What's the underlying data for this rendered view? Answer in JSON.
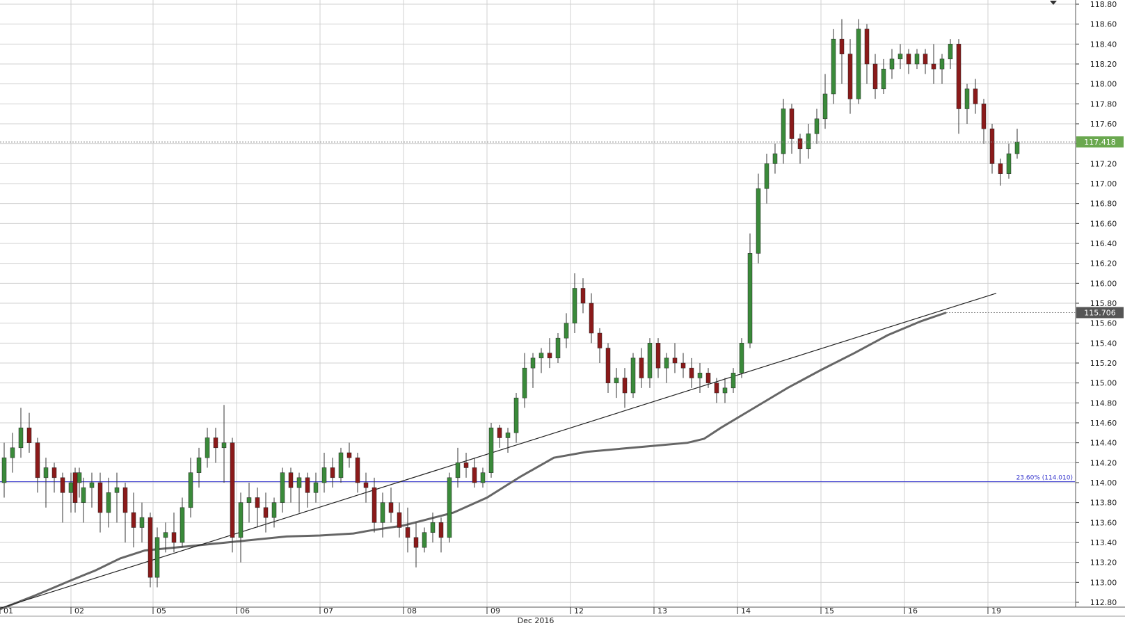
{
  "chart_data": {
    "type": "candlestick",
    "title": "",
    "xlabel": "",
    "ylabel": "",
    "month_label": "Dec 2016",
    "ylim": [
      112.72,
      118.82
    ],
    "y_ticks": [
      "112.80",
      "113.00",
      "113.20",
      "113.40",
      "113.60",
      "113.80",
      "114.00",
      "114.20",
      "114.40",
      "114.60",
      "114.80",
      "115.00",
      "115.20",
      "115.40",
      "115.60",
      "115.80",
      "116.00",
      "116.20",
      "116.40",
      "116.60",
      "116.80",
      "117.00",
      "117.20",
      "117.40",
      "117.60",
      "117.80",
      "118.00",
      "118.20",
      "118.40",
      "118.60",
      "118.80"
    ],
    "x_day_labels": [
      "01",
      "02",
      "05",
      "06",
      "07",
      "08",
      "09",
      "12",
      "13",
      "14",
      "15",
      "16",
      "19"
    ],
    "grid": true,
    "current_price_label": "117.418",
    "current_price": 117.418,
    "ma_price_label": "115.706",
    "ma_price": 115.706,
    "fib_label": "23.60% (114.010)",
    "fib_level": 114.01,
    "trendline_points": [
      [
        0.0,
        112.74
      ],
      [
        12.1,
        115.9
      ]
    ],
    "moving_average": [
      [
        0.0,
        112.73
      ],
      [
        0.5,
        112.87
      ],
      [
        0.8,
        112.96
      ],
      [
        1.0,
        113.02
      ],
      [
        1.3,
        113.12
      ],
      [
        1.6,
        113.24
      ],
      [
        1.9,
        113.32
      ],
      [
        2.4,
        113.36
      ],
      [
        3.0,
        113.41
      ],
      [
        3.6,
        113.46
      ],
      [
        4.0,
        113.47
      ],
      [
        4.4,
        113.49
      ],
      [
        4.6,
        113.52
      ],
      [
        5.0,
        113.57
      ],
      [
        5.6,
        113.7
      ],
      [
        6.0,
        113.85
      ],
      [
        6.4,
        114.06
      ],
      [
        6.8,
        114.25
      ],
      [
        7.2,
        114.31
      ],
      [
        7.6,
        114.34
      ],
      [
        8.0,
        114.37
      ],
      [
        8.4,
        114.4
      ],
      [
        8.6,
        114.44
      ],
      [
        8.8,
        114.55
      ],
      [
        9.2,
        114.75
      ],
      [
        9.6,
        114.95
      ],
      [
        10.0,
        115.13
      ],
      [
        10.4,
        115.3
      ],
      [
        10.8,
        115.48
      ],
      [
        11.2,
        115.62
      ],
      [
        11.5,
        115.706
      ]
    ],
    "series": [
      {
        "day": "01",
        "start": 0,
        "ohlc": [
          [
            114.0,
            114.4,
            113.85,
            114.25
          ],
          [
            114.25,
            114.5,
            114.1,
            114.35
          ],
          [
            114.35,
            114.75,
            114.25,
            114.55
          ],
          [
            114.55,
            114.7,
            114.3,
            114.4
          ],
          [
            114.4,
            114.45,
            113.9,
            114.05
          ],
          [
            114.05,
            114.25,
            113.75,
            114.15
          ],
          [
            114.15,
            114.2,
            113.9,
            114.05
          ],
          [
            114.05,
            114.1,
            113.6,
            113.9
          ],
          [
            113.9,
            114.1,
            113.7,
            114.0
          ],
          [
            114.0,
            114.15,
            113.85,
            114.1
          ]
        ]
      },
      {
        "day": "02",
        "start": 1,
        "ohlc": [
          [
            114.1,
            114.15,
            113.7,
            113.8
          ],
          [
            113.8,
            114.05,
            113.6,
            113.95
          ],
          [
            113.95,
            114.1,
            113.75,
            114.0
          ],
          [
            114.0,
            114.1,
            113.5,
            113.7
          ],
          [
            113.7,
            114.05,
            113.55,
            113.9
          ],
          [
            113.9,
            114.1,
            113.6,
            113.95
          ],
          [
            113.95,
            114.0,
            113.4,
            113.7
          ],
          [
            113.7,
            113.9,
            113.35,
            113.55
          ],
          [
            113.55,
            113.8,
            113.4,
            113.65
          ],
          [
            113.65,
            113.7,
            112.95,
            113.05
          ]
        ]
      },
      {
        "day": "05",
        "start": 2,
        "ohlc": [
          [
            113.05,
            113.55,
            112.95,
            113.45
          ],
          [
            113.45,
            113.6,
            113.3,
            113.5
          ],
          [
            113.5,
            113.7,
            113.3,
            113.4
          ],
          [
            113.4,
            113.85,
            113.35,
            113.75
          ],
          [
            113.75,
            114.25,
            113.65,
            114.1
          ],
          [
            114.1,
            114.35,
            113.95,
            114.25
          ],
          [
            114.25,
            114.55,
            114.15,
            114.45
          ],
          [
            114.45,
            114.55,
            114.2,
            114.35
          ],
          [
            114.35,
            114.78,
            114.0,
            114.4
          ],
          [
            114.4,
            114.45,
            113.3,
            113.45
          ]
        ]
      },
      {
        "day": "06",
        "start": 3,
        "ohlc": [
          [
            113.45,
            113.9,
            113.2,
            113.8
          ],
          [
            113.8,
            114.0,
            113.6,
            113.85
          ],
          [
            113.85,
            113.95,
            113.55,
            113.75
          ],
          [
            113.75,
            113.9,
            113.5,
            113.65
          ],
          [
            113.65,
            113.85,
            113.55,
            113.8
          ],
          [
            113.8,
            114.15,
            113.7,
            114.1
          ],
          [
            114.1,
            114.15,
            113.8,
            113.95
          ],
          [
            113.95,
            114.1,
            113.7,
            114.05
          ],
          [
            114.05,
            114.1,
            113.75,
            113.9
          ],
          [
            113.9,
            114.1,
            113.8,
            114.0
          ]
        ]
      },
      {
        "day": "07",
        "start": 4,
        "ohlc": [
          [
            114.0,
            114.3,
            113.9,
            114.15
          ],
          [
            114.15,
            114.25,
            113.95,
            114.05
          ],
          [
            114.05,
            114.35,
            114.0,
            114.3
          ],
          [
            114.3,
            114.4,
            114.15,
            114.25
          ],
          [
            114.25,
            114.3,
            113.9,
            114.0
          ],
          [
            114.0,
            114.1,
            113.8,
            113.95
          ],
          [
            113.95,
            114.05,
            113.5,
            113.6
          ],
          [
            113.6,
            113.9,
            113.45,
            113.8
          ],
          [
            113.8,
            113.95,
            113.6,
            113.7
          ],
          [
            113.7,
            113.8,
            113.45,
            113.55
          ]
        ]
      },
      {
        "day": "08",
        "start": 5,
        "ohlc": [
          [
            113.55,
            113.75,
            113.3,
            113.45
          ],
          [
            113.45,
            113.6,
            113.15,
            113.35
          ],
          [
            113.35,
            113.55,
            113.3,
            113.5
          ],
          [
            113.5,
            113.7,
            113.4,
            113.6
          ],
          [
            113.6,
            113.65,
            113.3,
            113.45
          ],
          [
            113.45,
            114.1,
            113.4,
            114.05
          ],
          [
            114.05,
            114.35,
            113.95,
            114.2
          ],
          [
            114.2,
            114.3,
            114.05,
            114.15
          ],
          [
            114.15,
            114.25,
            113.95,
            114.0
          ],
          [
            114.0,
            114.15,
            113.95,
            114.1
          ]
        ]
      },
      {
        "day": "09",
        "start": 6,
        "ohlc": [
          [
            114.1,
            114.6,
            114.05,
            114.55
          ],
          [
            114.55,
            114.58,
            114.35,
            114.45
          ],
          [
            114.45,
            114.55,
            114.3,
            114.5
          ],
          [
            114.5,
            114.9,
            114.4,
            114.85
          ],
          [
            114.85,
            115.3,
            114.75,
            115.15
          ],
          [
            115.15,
            115.3,
            114.95,
            115.25
          ],
          [
            115.25,
            115.35,
            115.1,
            115.3
          ],
          [
            115.3,
            115.45,
            115.15,
            115.25
          ],
          [
            115.25,
            115.5,
            115.2,
            115.45
          ],
          [
            115.45,
            115.7,
            115.35,
            115.6
          ]
        ]
      },
      {
        "day": "12",
        "start": 7,
        "ohlc": [
          [
            115.6,
            116.1,
            115.5,
            115.95
          ],
          [
            115.95,
            116.05,
            115.7,
            115.8
          ],
          [
            115.8,
            115.9,
            115.4,
            115.5
          ],
          [
            115.5,
            115.55,
            115.2,
            115.35
          ],
          [
            115.35,
            115.4,
            114.9,
            115.0
          ],
          [
            115.0,
            115.15,
            114.85,
            115.05
          ],
          [
            115.05,
            115.15,
            114.75,
            114.9
          ],
          [
            114.9,
            115.3,
            114.85,
            115.25
          ],
          [
            115.25,
            115.35,
            114.95,
            115.05
          ],
          [
            115.05,
            115.45,
            114.95,
            115.4
          ]
        ]
      },
      {
        "day": "13",
        "start": 8,
        "ohlc": [
          [
            115.4,
            115.45,
            115.05,
            115.15
          ],
          [
            115.15,
            115.3,
            115.0,
            115.25
          ],
          [
            115.25,
            115.4,
            115.1,
            115.2
          ],
          [
            115.2,
            115.3,
            115.05,
            115.15
          ],
          [
            115.15,
            115.25,
            114.95,
            115.05
          ],
          [
            115.05,
            115.2,
            114.9,
            115.1
          ],
          [
            115.1,
            115.15,
            114.95,
            115.0
          ],
          [
            115.0,
            115.05,
            114.8,
            114.9
          ],
          [
            114.9,
            115.05,
            114.8,
            114.95
          ],
          [
            114.95,
            115.15,
            114.9,
            115.1
          ]
        ]
      },
      {
        "day": "14",
        "start": 9,
        "ohlc": [
          [
            115.1,
            115.45,
            115.05,
            115.4
          ],
          [
            115.4,
            116.5,
            115.35,
            116.3
          ],
          [
            116.3,
            117.1,
            116.2,
            116.95
          ],
          [
            116.95,
            117.3,
            116.8,
            117.2
          ],
          [
            117.2,
            117.4,
            117.1,
            117.3
          ],
          [
            117.3,
            117.85,
            117.2,
            117.75
          ],
          [
            117.75,
            117.8,
            117.3,
            117.45
          ],
          [
            117.45,
            117.5,
            117.2,
            117.35
          ],
          [
            117.35,
            117.6,
            117.25,
            117.5
          ],
          [
            117.5,
            117.75,
            117.4,
            117.65
          ]
        ]
      },
      {
        "day": "15",
        "start": 10,
        "ohlc": [
          [
            117.65,
            118.1,
            117.55,
            117.9
          ],
          [
            117.9,
            118.55,
            117.8,
            118.45
          ],
          [
            118.45,
            118.65,
            118.0,
            118.3
          ],
          [
            118.3,
            118.45,
            117.7,
            117.85
          ],
          [
            117.85,
            118.65,
            117.8,
            118.55
          ],
          [
            118.55,
            118.6,
            118.0,
            118.2
          ],
          [
            118.2,
            118.3,
            117.85,
            117.95
          ],
          [
            117.95,
            118.25,
            117.9,
            118.15
          ],
          [
            118.15,
            118.35,
            118.05,
            118.25
          ],
          [
            118.25,
            118.4,
            118.15,
            118.3
          ]
        ]
      },
      {
        "day": "16",
        "start": 11,
        "ohlc": [
          [
            118.3,
            118.35,
            118.1,
            118.2
          ],
          [
            118.2,
            118.35,
            118.15,
            118.3
          ],
          [
            118.3,
            118.35,
            118.1,
            118.2
          ],
          [
            118.2,
            118.4,
            118.0,
            118.15
          ],
          [
            118.15,
            118.3,
            118.0,
            118.25
          ],
          [
            118.25,
            118.45,
            118.15,
            118.4
          ],
          [
            118.4,
            118.45,
            117.5,
            117.75
          ],
          [
            117.75,
            118.0,
            117.6,
            117.95
          ],
          [
            117.95,
            118.05,
            117.7,
            117.8
          ],
          [
            117.8,
            117.85,
            117.4,
            117.55
          ]
        ]
      },
      {
        "day": "19",
        "start": 12,
        "ohlc": [
          [
            117.55,
            117.6,
            117.1,
            117.2
          ],
          [
            117.2,
            117.25,
            116.98,
            117.1
          ],
          [
            117.1,
            117.4,
            117.05,
            117.3
          ],
          [
            117.3,
            117.55,
            117.25,
            117.418
          ]
        ]
      }
    ],
    "colors": {
      "up": "#3a8a3a",
      "down": "#8b1a1a",
      "wick": "#333333",
      "grid": "#d0d0d0",
      "fib": "#3333cc",
      "price_tag": "#6aa84f",
      "ma_tag": "#555555",
      "ma_line": "#666666",
      "trendline": "#222222"
    }
  }
}
